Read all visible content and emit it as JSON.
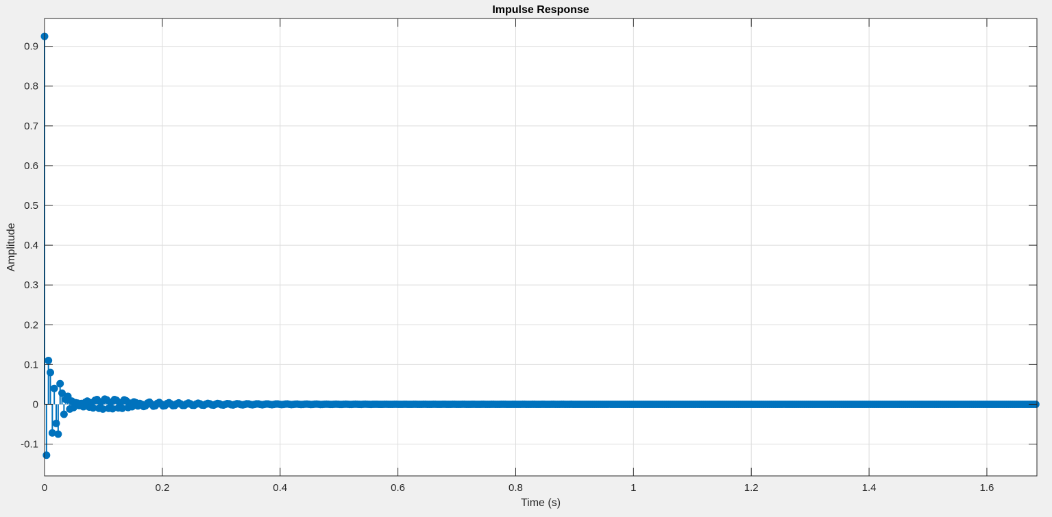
{
  "chart_data": {
    "type": "stem",
    "title": "Impulse Response",
    "xlabel": "Time (s)",
    "ylabel": "Amplitude",
    "xlim": [
      0,
      1.685
    ],
    "ylim": [
      -0.18,
      0.97
    ],
    "xticks": [
      0,
      0.2,
      0.4,
      0.6,
      0.8,
      1,
      1.2,
      1.4,
      1.6
    ],
    "xtick_labels": [
      "0",
      "0.2",
      "0.4",
      "0.6",
      "0.8",
      "1",
      "1.2",
      "1.4",
      "1.6"
    ],
    "yticks": [
      -0.1,
      0,
      0.1,
      0.2,
      0.3,
      0.4,
      0.5,
      0.6,
      0.7,
      0.8,
      0.9
    ],
    "ytick_labels": [
      "-0.1",
      "0",
      "0.1",
      "0.2",
      "0.3",
      "0.4",
      "0.5",
      "0.6",
      "0.7",
      "0.8",
      "0.9"
    ],
    "grid": true,
    "series_color": "#0072bd",
    "sample_interval": 0.0033,
    "series": [
      {
        "x": [
          0,
          0.0033,
          0.0066,
          0.0099,
          0.0132,
          0.0165,
          0.0198,
          0.0231,
          0.0264,
          0.0297,
          0.033,
          0.0363,
          0.0396,
          0.0429,
          0.0462,
          0.0495,
          0.0528,
          0.0561,
          0.0594,
          0.0627,
          0.066,
          0.0693,
          0.0726,
          0.0759,
          0.0792,
          0.0825,
          0.0858,
          0.0891,
          0.0924,
          0.0957,
          0.099,
          0.1023,
          0.1056,
          0.1089,
          0.1122,
          0.1155,
          0.1188,
          0.1221,
          0.1254,
          0.1287,
          0.132,
          0.1353,
          0.1386,
          0.1419,
          0.1452,
          0.1485,
          0.1518,
          0.1551,
          0.1584,
          0.1617
        ],
        "y": [
          0.925,
          -0.128,
          0.11,
          0.08,
          -0.072,
          0.04,
          -0.048,
          -0.075,
          0.052,
          0.028,
          -0.025,
          0.012,
          0.02,
          -0.012,
          0.008,
          -0.008,
          0.004,
          0.003,
          -0.003,
          0.002,
          -0.006,
          0.005,
          0.008,
          -0.007,
          0.004,
          -0.009,
          0.01,
          0.012,
          -0.01,
          0.006,
          -0.012,
          0.013,
          0.011,
          -0.01,
          0.005,
          -0.011,
          0.012,
          0.01,
          -0.009,
          0.004,
          -0.01,
          0.011,
          0.009,
          -0.008,
          0.003,
          -0.006,
          0.006,
          0.004,
          -0.004,
          0.002
        ]
      }
    ]
  }
}
